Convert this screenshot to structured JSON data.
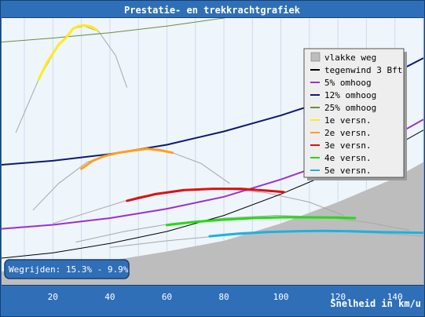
{
  "window": {
    "title": "Prestatie- en trekkrachtgrafiek"
  },
  "colors": {
    "frame": "#2f6fb8",
    "frame_border": "#1b3f6e",
    "plot_bg": "#eef5fb",
    "gridline": "#d0dceb",
    "road_fill": "#bdbdbd",
    "traction_curve": "#a8a8a8"
  },
  "badge": {
    "label": "Wegrijden: 15.3% - 9.9%"
  },
  "chart_data": {
    "type": "line",
    "title": "Prestatie- en trekkrachtgrafiek",
    "xlabel": "Snelheid in km/u",
    "ylabel": "",
    "xlim": [
      2,
      150
    ],
    "ylim": [
      0,
      100
    ],
    "x_ticks": [
      20,
      40,
      60,
      80,
      100,
      120,
      140
    ],
    "grid": true,
    "legend_position": "top-right",
    "legend": [
      {
        "label": "vlakke weg",
        "color": "#bdbdbd",
        "marker": "square"
      },
      {
        "label": "tegenwind 3 Bft",
        "color": "#000000",
        "marker": "line"
      },
      {
        "label": "5% omhoog",
        "color": "#9b30d0",
        "marker": "line"
      },
      {
        "label": "12% omhoog",
        "color": "#0d1a70",
        "marker": "line"
      },
      {
        "label": "25% omhoog",
        "color": "#6b8e3a",
        "marker": "line"
      },
      {
        "label": "1e versn.",
        "color": "#ffeb1a",
        "marker": "line"
      },
      {
        "label": "2e versn.",
        "color": "#ff9f1a",
        "marker": "line"
      },
      {
        "label": "3e versn.",
        "color": "#dd1111",
        "marker": "line"
      },
      {
        "label": "4e versn.",
        "color": "#22dd11",
        "marker": "line"
      },
      {
        "label": "5e versn.",
        "color": "#1ab2e6",
        "marker": "line"
      }
    ],
    "resistance_curves": [
      {
        "name": "vlakke weg",
        "kind": "area",
        "color": "#bdbdbd",
        "x": [
          2,
          20,
          40,
          60,
          80,
          100,
          120,
          140,
          150
        ],
        "y": [
          5,
          7,
          9,
          12.5,
          16.5,
          23,
          31,
          40,
          46
        ]
      },
      {
        "name": "tegenwind 3 Bft",
        "kind": "line",
        "color": "#000000",
        "width": 1,
        "x": [
          2,
          20,
          40,
          60,
          80,
          100,
          120,
          140,
          150
        ],
        "y": [
          10,
          12,
          15.5,
          20,
          26,
          34,
          43,
          52,
          58
        ]
      },
      {
        "name": "5% omhoog",
        "kind": "line",
        "color": "#9b30d0",
        "width": 2,
        "x": [
          2,
          20,
          40,
          60,
          80,
          100,
          120,
          140,
          150
        ],
        "y": [
          21,
          22.5,
          25,
          28.5,
          33,
          39.5,
          47,
          56,
          62
        ]
      },
      {
        "name": "12% omhoog",
        "kind": "line",
        "color": "#0d1a70",
        "width": 2,
        "x": [
          2,
          20,
          40,
          60,
          80,
          100,
          120,
          140,
          150
        ],
        "y": [
          45,
          46.5,
          49,
          52.5,
          57.5,
          63.5,
          70.5,
          79.5,
          85
        ]
      },
      {
        "name": "25% omhoog",
        "kind": "line",
        "color": "#6b8e3a",
        "width": 1,
        "x": [
          2,
          20,
          40,
          60,
          80,
          100,
          120,
          140,
          150
        ],
        "y": [
          91,
          92.5,
          94.5,
          97,
          100,
          104,
          109,
          115,
          119
        ]
      }
    ],
    "traction_curves": [
      {
        "name": "1e versn.",
        "color": "#a8a8a8",
        "x": [
          7,
          15,
          22,
          27,
          31,
          36,
          42,
          46
        ],
        "y": [
          57,
          77,
          90,
          96,
          97,
          95,
          86,
          74
        ]
      },
      {
        "name": "2e versn.",
        "color": "#a8a8a8",
        "x": [
          13,
          22,
          32,
          42,
          52,
          62,
          72,
          82
        ],
        "y": [
          28,
          38,
          46,
          49.5,
          51,
          49.5,
          45.5,
          38
        ]
      },
      {
        "name": "3e versn.",
        "color": "#a8a8a8",
        "x": [
          20,
          35,
          50,
          65,
          80,
          95,
          110,
          122
        ],
        "y": [
          23,
          28,
          33,
          35.5,
          36,
          34.5,
          31,
          26
        ]
      },
      {
        "name": "4e versn.",
        "color": "#a8a8a8",
        "x": [
          28,
          45,
          62,
          80,
          98,
          115,
          130,
          145
        ],
        "y": [
          16,
          20,
          23,
          25,
          26,
          25.5,
          23.5,
          20.5
        ]
      },
      {
        "name": "5e versn.",
        "color": "#a8a8a8",
        "x": [
          40,
          60,
          80,
          100,
          120,
          140,
          150
        ],
        "y": [
          14,
          16.5,
          18.5,
          19.8,
          20,
          19,
          18.2
        ]
      }
    ],
    "gear_segments": [
      {
        "name": "1e versn.",
        "color": "#ffeb1a",
        "x": [
          15,
          18,
          22,
          25,
          27,
          29,
          31,
          33.5,
          35.5
        ],
        "y": [
          77,
          83.5,
          90,
          93,
          96,
          97,
          97.3,
          96.8,
          95.5
        ]
      },
      {
        "name": "2e versn.",
        "color": "#ff9f1a",
        "x": [
          30,
          34,
          38,
          43,
          48,
          53,
          57,
          62
        ],
        "y": [
          43.5,
          46.5,
          48.2,
          49.5,
          50.3,
          51,
          50.6,
          49.5
        ]
      },
      {
        "name": "3e versn.",
        "color": "#dd1111",
        "x": [
          46,
          56,
          66,
          76,
          86,
          96,
          101
        ],
        "y": [
          31.5,
          34,
          35.5,
          36,
          36,
          35.2,
          34.8
        ]
      },
      {
        "name": "4e versn.",
        "color": "#22dd11",
        "x": [
          60,
          70,
          80,
          90,
          100,
          110,
          120,
          126
        ],
        "y": [
          22.4,
          23.6,
          24.4,
          25,
          25.3,
          25.3,
          25.2,
          25
        ]
      },
      {
        "name": "5e versn.",
        "color": "#1ab2e6",
        "x": [
          75,
          85,
          95,
          105,
          115,
          125,
          135,
          145,
          150
        ],
        "y": [
          18.2,
          19.2,
          19.8,
          20.1,
          20.2,
          20.1,
          19.8,
          19.6,
          19.5
        ]
      }
    ]
  }
}
